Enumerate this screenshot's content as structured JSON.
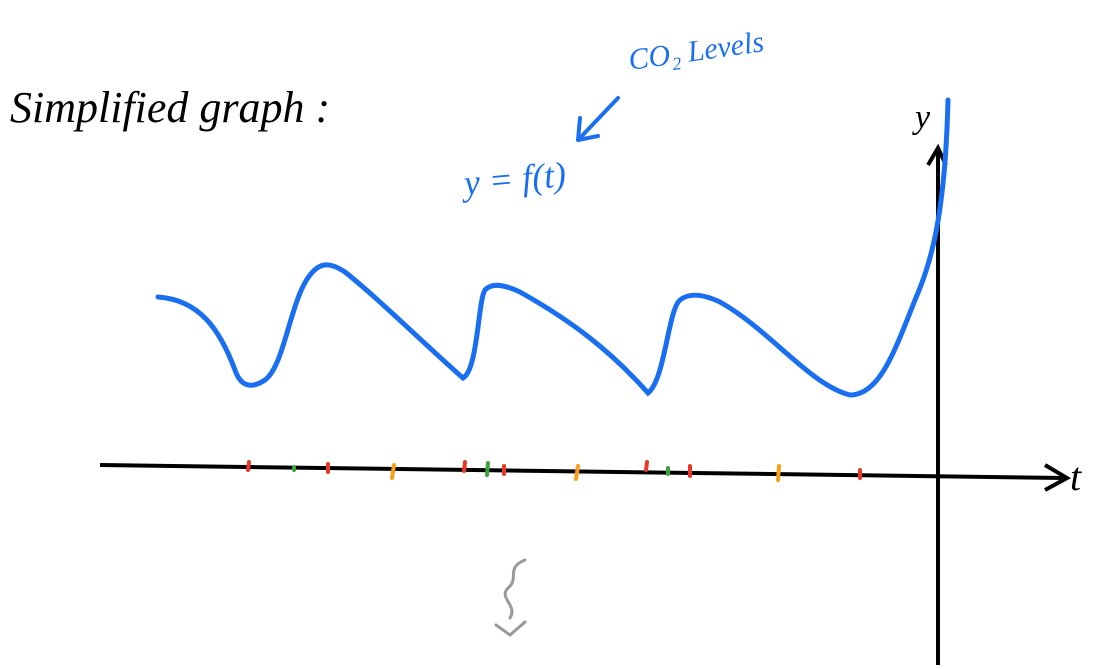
{
  "title": "Simplified graph :",
  "annotation": "CO₂ Levels",
  "equation": "y = f(t)",
  "axes": {
    "y": "y",
    "t": "t"
  }
}
